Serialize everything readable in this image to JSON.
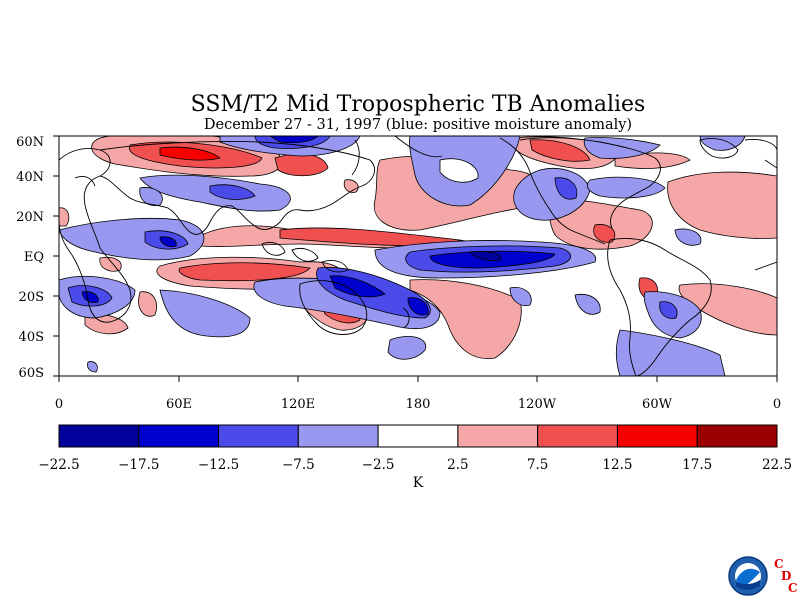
{
  "title": "SSM/T2 Mid Tropospheric TB Anomalies",
  "subtitle": "December 27 - 31, 1997 (blue: positive moisture anomaly)",
  "map": {
    "lat_labels": [
      "60N",
      "40N",
      "20N",
      "EQ",
      "20S",
      "40S",
      "60S"
    ],
    "lon_labels": [
      "0",
      "60E",
      "120E",
      "180",
      "120W",
      "60W",
      "0"
    ],
    "projection": "cylindrical equidistant, 0 to 360 longitude, 60S to 60N"
  },
  "colorbar": {
    "unit": "K",
    "boundaries": [
      "-22.5",
      "-17.5",
      "-12.5",
      "-7.5",
      "-2.5",
      "2.5",
      "7.5",
      "12.5",
      "17.5",
      "22.5"
    ],
    "colors": [
      "#00009a",
      "#0000cd",
      "#4b4bea",
      "#9898f0",
      "#ffffff",
      "#f5a6a6",
      "#f05050",
      "#f60000",
      "#9a0000"
    ]
  },
  "logo": {
    "agency": "NOAA",
    "letters": [
      "C",
      "D",
      "C"
    ]
  }
}
